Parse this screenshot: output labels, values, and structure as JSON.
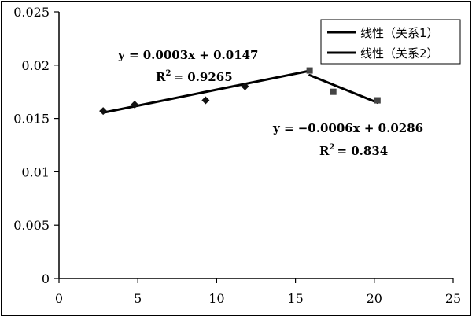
{
  "chart_data": {
    "type": "scatter",
    "xlim": [
      0,
      25
    ],
    "ylim": [
      0,
      0.025
    ],
    "x_ticks": [
      "0",
      "5",
      "10",
      "15",
      "20",
      "25"
    ],
    "y_ticks": [
      "0",
      "0.005",
      "0.01",
      "0.015",
      "0.02",
      "0.025"
    ],
    "grid": false,
    "legend_position": "top-right",
    "legend": [
      "线性（关系1）",
      "线性（关系2）"
    ],
    "series": [
      {
        "marker": "diamond",
        "color": "#111111",
        "points": [
          {
            "x": 2.8,
            "y": 0.0157
          },
          {
            "x": 4.8,
            "y": 0.0163
          },
          {
            "x": 9.3,
            "y": 0.0167
          },
          {
            "x": 11.8,
            "y": 0.018
          }
        ]
      },
      {
        "marker": "square",
        "color": "#444444",
        "points": [
          {
            "x": 15.9,
            "y": 0.0195
          },
          {
            "x": 17.4,
            "y": 0.0175
          },
          {
            "x": 20.2,
            "y": 0.0167
          }
        ]
      }
    ],
    "trendlines": [
      {
        "name": "线性（关系1）",
        "slope": 0.0003,
        "intercept": 0.0147,
        "x_range": [
          2.8,
          15.9
        ],
        "equation": "y = 0.0003x + 0.0147",
        "r2_text": "= 0.9265"
      },
      {
        "name": "线性（关系2）",
        "slope": -0.0006,
        "intercept": 0.0286,
        "x_range": [
          15.9,
          20.2
        ],
        "equation": "y = −0.0006x + 0.0286",
        "r2_text": "= 0.834"
      }
    ],
    "r2_prefix": "R",
    "r2_sup": "2"
  }
}
